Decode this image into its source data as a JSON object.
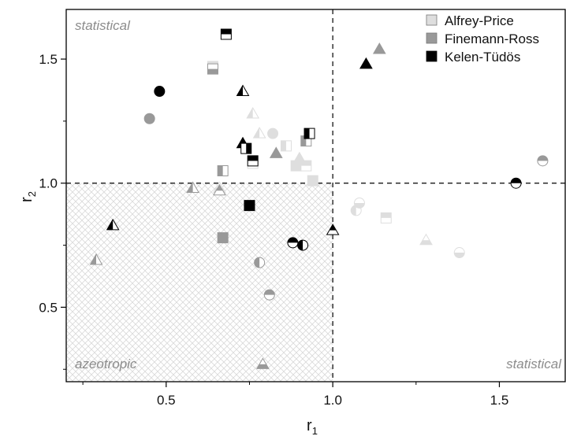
{
  "chart_data": {
    "type": "scatter",
    "xlabel": "r",
    "xlabel_sub": "1",
    "ylabel": "r",
    "ylabel_sub": "2",
    "xlim": [
      0.2,
      1.7
    ],
    "ylim": [
      0.2,
      1.7
    ],
    "xticks": [
      0.5,
      1.0,
      1.5
    ],
    "xtick_labels": [
      "0.5",
      "1.0",
      "1.5"
    ],
    "yticks": [
      0.5,
      1.0,
      1.5
    ],
    "ytick_labels": [
      "0.5",
      "1.0",
      "1.5"
    ],
    "reference_lines": {
      "x": 1.0,
      "y": 1.0,
      "style": "dashed"
    },
    "shaded_region": {
      "x": [
        0.2,
        1.0
      ],
      "y": [
        0.2,
        1.0
      ],
      "pattern": "crosshatch"
    },
    "region_labels": {
      "top_left": "statistical",
      "bottom_left": "azeotropic",
      "bottom_right": "statistical"
    },
    "legend_position": "top-right",
    "grid": false,
    "series": [
      {
        "name": "Alfrey-Price",
        "color": "#dedede",
        "points": [
          {
            "x": 0.64,
            "y": 1.47,
            "shape": "square",
            "fill": "top"
          },
          {
            "x": 0.76,
            "y": 1.28,
            "shape": "triangle",
            "fill": "left"
          },
          {
            "x": 0.78,
            "y": 1.2,
            "shape": "triangle",
            "fill": "left"
          },
          {
            "x": 0.82,
            "y": 1.2,
            "shape": "circle",
            "fill": "full"
          },
          {
            "x": 0.86,
            "y": 1.15,
            "shape": "square",
            "fill": "left"
          },
          {
            "x": 0.89,
            "y": 1.07,
            "shape": "square",
            "fill": "full"
          },
          {
            "x": 0.9,
            "y": 1.1,
            "shape": "triangle",
            "fill": "full"
          },
          {
            "x": 0.92,
            "y": 1.07,
            "shape": "square",
            "fill": "top"
          },
          {
            "x": 0.94,
            "y": 1.01,
            "shape": "square",
            "fill": "full"
          },
          {
            "x": 0.76,
            "y": 1.08,
            "shape": "square",
            "fill": "top"
          },
          {
            "x": 1.07,
            "y": 0.89,
            "shape": "circle",
            "fill": "left"
          },
          {
            "x": 1.08,
            "y": 0.92,
            "shape": "circle",
            "fill": "bottom"
          },
          {
            "x": 1.16,
            "y": 0.86,
            "shape": "square",
            "fill": "top"
          },
          {
            "x": 1.28,
            "y": 0.77,
            "shape": "triangle",
            "fill": "bottom"
          },
          {
            "x": 1.38,
            "y": 0.72,
            "shape": "circle",
            "fill": "bottom"
          },
          {
            "x": 0.66,
            "y": 0.98,
            "shape": "triangle",
            "fill": "bottom"
          }
        ]
      },
      {
        "name": "Finemann-Ross",
        "color": "#999999",
        "points": [
          {
            "x": 0.45,
            "y": 1.26,
            "shape": "circle",
            "fill": "full"
          },
          {
            "x": 0.64,
            "y": 1.46,
            "shape": "square",
            "fill": "bottom"
          },
          {
            "x": 1.14,
            "y": 1.54,
            "shape": "triangle",
            "fill": "full"
          },
          {
            "x": 0.67,
            "y": 1.05,
            "shape": "square",
            "fill": "left"
          },
          {
            "x": 0.83,
            "y": 1.12,
            "shape": "triangle",
            "fill": "full"
          },
          {
            "x": 0.92,
            "y": 1.17,
            "shape": "square",
            "fill": "left"
          },
          {
            "x": 0.58,
            "y": 0.98,
            "shape": "triangle",
            "fill": "left"
          },
          {
            "x": 0.66,
            "y": 0.97,
            "shape": "triangle",
            "fill": "top"
          },
          {
            "x": 0.29,
            "y": 0.69,
            "shape": "triangle",
            "fill": "left"
          },
          {
            "x": 0.67,
            "y": 0.78,
            "shape": "square",
            "fill": "full"
          },
          {
            "x": 0.78,
            "y": 0.68,
            "shape": "circle",
            "fill": "left"
          },
          {
            "x": 0.81,
            "y": 0.55,
            "shape": "circle",
            "fill": "top"
          },
          {
            "x": 0.79,
            "y": 0.27,
            "shape": "triangle",
            "fill": "bottom"
          },
          {
            "x": 1.63,
            "y": 1.09,
            "shape": "circle",
            "fill": "top"
          }
        ]
      },
      {
        "name": "Kelen-Tüdös",
        "color": "#000000",
        "points": [
          {
            "x": 0.48,
            "y": 1.37,
            "shape": "circle",
            "fill": "full"
          },
          {
            "x": 0.68,
            "y": 1.6,
            "shape": "square",
            "fill": "top"
          },
          {
            "x": 0.73,
            "y": 1.37,
            "shape": "triangle",
            "fill": "left"
          },
          {
            "x": 0.73,
            "y": 1.16,
            "shape": "triangle",
            "fill": "full"
          },
          {
            "x": 0.74,
            "y": 1.14,
            "shape": "square",
            "fill": "right"
          },
          {
            "x": 0.76,
            "y": 1.09,
            "shape": "square",
            "fill": "top"
          },
          {
            "x": 0.93,
            "y": 1.2,
            "shape": "square",
            "fill": "left"
          },
          {
            "x": 1.1,
            "y": 1.48,
            "shape": "triangle",
            "fill": "full"
          },
          {
            "x": 0.75,
            "y": 0.91,
            "shape": "square",
            "fill": "full"
          },
          {
            "x": 0.34,
            "y": 0.83,
            "shape": "triangle",
            "fill": "left"
          },
          {
            "x": 0.88,
            "y": 0.76,
            "shape": "circle",
            "fill": "top"
          },
          {
            "x": 0.91,
            "y": 0.75,
            "shape": "circle",
            "fill": "left"
          },
          {
            "x": 1.0,
            "y": 0.81,
            "shape": "triangle",
            "fill": "top"
          },
          {
            "x": 1.55,
            "y": 1.0,
            "shape": "circle",
            "fill": "top"
          }
        ]
      }
    ]
  }
}
